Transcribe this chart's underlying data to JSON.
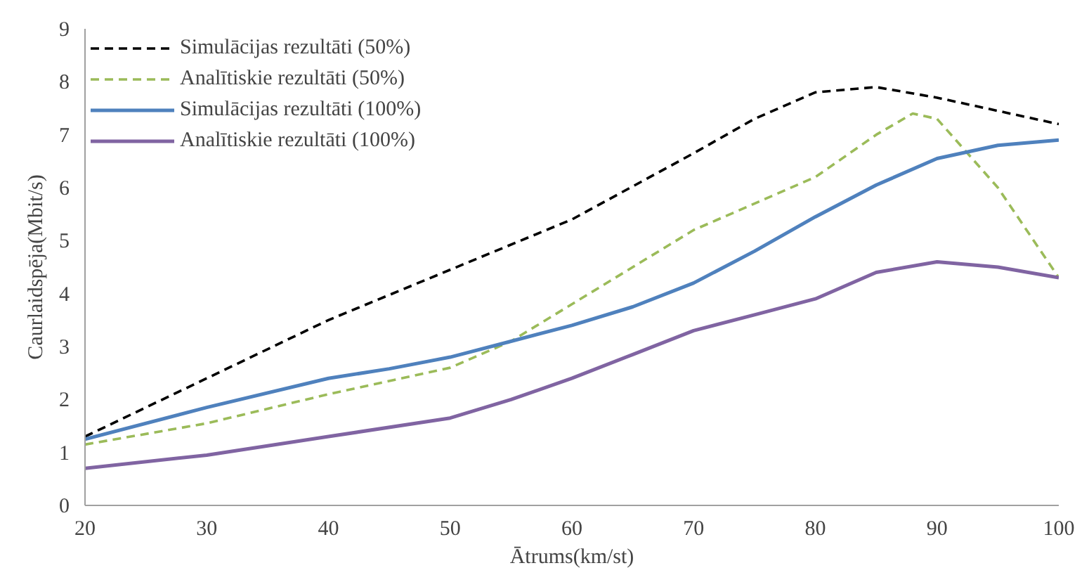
{
  "chart_data": {
    "type": "line",
    "xlabel": "Ātrums(km/st)",
    "ylabel": "Caurlaidspēja(Mbit/s)",
    "xlim": [
      20,
      100
    ],
    "xticks": [
      20,
      30,
      40,
      50,
      60,
      70,
      80,
      90,
      100
    ],
    "ylim": [
      0,
      9
    ],
    "yticks": [
      0,
      1,
      2,
      3,
      4,
      5,
      6,
      7,
      8,
      9
    ],
    "grid": false,
    "legend": "top left",
    "marker": "none",
    "series": [
      {
        "name": "Simulācijas rezultāti (50%)",
        "color": "#000000",
        "line_style": "dashed",
        "x": [
          20,
          30,
          40,
          50,
          60,
          70,
          75,
          80,
          85,
          90,
          95,
          100
        ],
        "values": [
          1.3,
          2.4,
          3.5,
          4.45,
          5.4,
          6.65,
          7.3,
          7.8,
          7.9,
          7.7,
          7.45,
          7.2
        ]
      },
      {
        "name": "Analītiskie rezultāti (50%)",
        "color": "#9bbb59",
        "line_style": "dashed",
        "x": [
          20,
          30,
          40,
          50,
          55,
          60,
          65,
          70,
          75,
          80,
          85,
          88,
          90,
          95,
          100
        ],
        "values": [
          1.15,
          1.55,
          2.1,
          2.6,
          3.1,
          3.8,
          4.5,
          5.2,
          5.7,
          6.2,
          7.0,
          7.4,
          7.3,
          6.0,
          4.3
        ]
      },
      {
        "name": "Simulācijas rezultāti (100%)",
        "color": "#4f81bd",
        "line_style": "solid",
        "x": [
          20,
          30,
          40,
          45,
          50,
          55,
          60,
          65,
          70,
          75,
          80,
          85,
          90,
          95,
          100
        ],
        "values": [
          1.25,
          1.85,
          2.4,
          2.58,
          2.8,
          3.1,
          3.4,
          3.75,
          4.2,
          4.8,
          5.45,
          6.05,
          6.55,
          6.8,
          6.9
        ]
      },
      {
        "name": "Analītiskie rezultāti (100%)",
        "color": "#8064a2",
        "line_style": "solid",
        "x": [
          20,
          30,
          40,
          50,
          55,
          60,
          65,
          70,
          75,
          80,
          85,
          90,
          95,
          100
        ],
        "values": [
          0.7,
          0.95,
          1.3,
          1.65,
          2.0,
          2.4,
          2.85,
          3.3,
          3.6,
          3.9,
          4.4,
          4.6,
          4.5,
          4.3
        ]
      }
    ]
  }
}
